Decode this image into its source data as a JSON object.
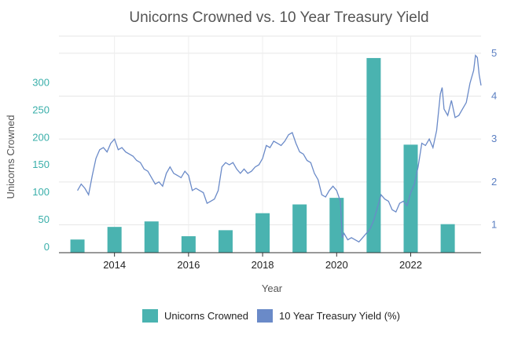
{
  "chart_data": {
    "type": "bar+line",
    "title": "Unicorns Crowned vs. 10 Year Treasury Yield",
    "xlabel": "Year",
    "ylabel_left": "Unicorns Crowned",
    "ylabel_right": "",
    "xlim": [
      2012.5,
      2023.9
    ],
    "ylim_left": [
      -10,
      385
    ],
    "ylim_right": [
      0.35,
      5.4
    ],
    "x_ticks": [
      2014,
      2016,
      2018,
      2020,
      2022
    ],
    "y_left_ticks": [
      0,
      50,
      100,
      150,
      200,
      250,
      300
    ],
    "y_right_ticks": [
      1,
      2,
      3,
      4,
      5
    ],
    "grid": true,
    "legend_position": "bottom",
    "colors": {
      "bars": "#4ab3b0",
      "line": "#6a8ac8",
      "left_axis": "#3aafaa",
      "right_axis": "#5b7fc2"
    },
    "bars": {
      "name": "Unicorns Crowned",
      "years": [
        2013,
        2014,
        2015,
        2016,
        2017,
        2018,
        2019,
        2020,
        2021,
        2022,
        2023
      ],
      "values": [
        14,
        37,
        47,
        20,
        31,
        62,
        78,
        90,
        345,
        187,
        42
      ]
    },
    "line": {
      "name": "10 Year Treasury Yield (%)",
      "points": [
        [
          2013.0,
          1.8
        ],
        [
          2013.1,
          1.95
        ],
        [
          2013.2,
          1.85
        ],
        [
          2013.3,
          1.7
        ],
        [
          2013.4,
          2.15
        ],
        [
          2013.5,
          2.55
        ],
        [
          2013.6,
          2.75
        ],
        [
          2013.7,
          2.8
        ],
        [
          2013.8,
          2.7
        ],
        [
          2013.9,
          2.9
        ],
        [
          2014.0,
          3.0
        ],
        [
          2014.1,
          2.75
        ],
        [
          2014.2,
          2.8
        ],
        [
          2014.3,
          2.7
        ],
        [
          2014.4,
          2.65
        ],
        [
          2014.5,
          2.6
        ],
        [
          2014.6,
          2.5
        ],
        [
          2014.7,
          2.45
        ],
        [
          2014.8,
          2.3
        ],
        [
          2014.9,
          2.25
        ],
        [
          2015.0,
          2.1
        ],
        [
          2015.1,
          1.95
        ],
        [
          2015.2,
          2.0
        ],
        [
          2015.3,
          1.9
        ],
        [
          2015.4,
          2.2
        ],
        [
          2015.5,
          2.35
        ],
        [
          2015.6,
          2.2
        ],
        [
          2015.7,
          2.15
        ],
        [
          2015.8,
          2.1
        ],
        [
          2015.9,
          2.25
        ],
        [
          2016.0,
          2.15
        ],
        [
          2016.1,
          1.8
        ],
        [
          2016.2,
          1.85
        ],
        [
          2016.3,
          1.8
        ],
        [
          2016.4,
          1.75
        ],
        [
          2016.5,
          1.5
        ],
        [
          2016.6,
          1.55
        ],
        [
          2016.7,
          1.6
        ],
        [
          2016.8,
          1.8
        ],
        [
          2016.9,
          2.35
        ],
        [
          2017.0,
          2.45
        ],
        [
          2017.1,
          2.4
        ],
        [
          2017.2,
          2.45
        ],
        [
          2017.3,
          2.3
        ],
        [
          2017.4,
          2.2
        ],
        [
          2017.5,
          2.3
        ],
        [
          2017.6,
          2.2
        ],
        [
          2017.7,
          2.25
        ],
        [
          2017.8,
          2.35
        ],
        [
          2017.9,
          2.4
        ],
        [
          2018.0,
          2.55
        ],
        [
          2018.1,
          2.85
        ],
        [
          2018.2,
          2.8
        ],
        [
          2018.3,
          2.95
        ],
        [
          2018.4,
          2.9
        ],
        [
          2018.5,
          2.85
        ],
        [
          2018.6,
          2.95
        ],
        [
          2018.7,
          3.1
        ],
        [
          2018.8,
          3.15
        ],
        [
          2018.9,
          2.9
        ],
        [
          2019.0,
          2.7
        ],
        [
          2019.1,
          2.65
        ],
        [
          2019.2,
          2.5
        ],
        [
          2019.3,
          2.45
        ],
        [
          2019.4,
          2.2
        ],
        [
          2019.5,
          2.05
        ],
        [
          2019.6,
          1.7
        ],
        [
          2019.7,
          1.65
        ],
        [
          2019.8,
          1.8
        ],
        [
          2019.9,
          1.9
        ],
        [
          2020.0,
          1.8
        ],
        [
          2020.1,
          1.55
        ],
        [
          2020.15,
          0.7
        ],
        [
          2020.2,
          0.8
        ],
        [
          2020.3,
          0.65
        ],
        [
          2020.4,
          0.7
        ],
        [
          2020.5,
          0.65
        ],
        [
          2020.6,
          0.6
        ],
        [
          2020.7,
          0.7
        ],
        [
          2020.8,
          0.8
        ],
        [
          2020.9,
          0.9
        ],
        [
          2021.0,
          1.1
        ],
        [
          2021.1,
          1.4
        ],
        [
          2021.2,
          1.7
        ],
        [
          2021.3,
          1.6
        ],
        [
          2021.4,
          1.55
        ],
        [
          2021.5,
          1.35
        ],
        [
          2021.6,
          1.3
        ],
        [
          2021.7,
          1.5
        ],
        [
          2021.8,
          1.55
        ],
        [
          2021.9,
          1.45
        ],
        [
          2022.0,
          1.75
        ],
        [
          2022.1,
          1.95
        ],
        [
          2022.2,
          2.35
        ],
        [
          2022.3,
          2.9
        ],
        [
          2022.4,
          2.85
        ],
        [
          2022.5,
          3.0
        ],
        [
          2022.6,
          2.8
        ],
        [
          2022.7,
          3.2
        ],
        [
          2022.8,
          4.05
        ],
        [
          2022.85,
          4.2
        ],
        [
          2022.9,
          3.7
        ],
        [
          2023.0,
          3.55
        ],
        [
          2023.1,
          3.9
        ],
        [
          2023.2,
          3.5
        ],
        [
          2023.3,
          3.55
        ],
        [
          2023.4,
          3.7
        ],
        [
          2023.5,
          3.85
        ],
        [
          2023.6,
          4.3
        ],
        [
          2023.7,
          4.6
        ],
        [
          2023.75,
          4.95
        ],
        [
          2023.8,
          4.9
        ],
        [
          2023.85,
          4.5
        ],
        [
          2023.9,
          4.25
        ]
      ]
    }
  }
}
